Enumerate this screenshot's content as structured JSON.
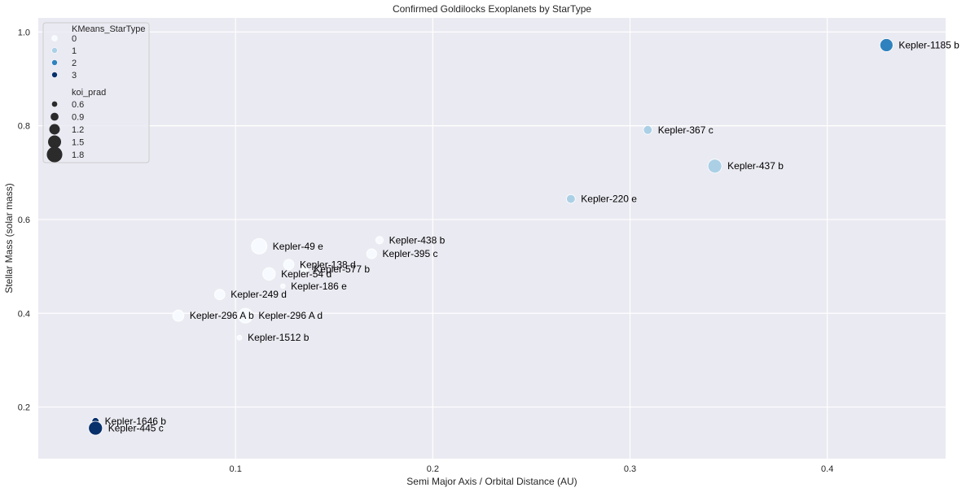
{
  "chart_data": {
    "type": "scatter",
    "title": "Confirmed Goldilocks Exoplanets by StarType",
    "xlabel": "Semi Major Axis / Orbital Distance (AU)",
    "ylabel": "Stellar Mass (solar mass)",
    "xlim": [
      0.0,
      0.46
    ],
    "ylim": [
      0.09,
      1.03
    ],
    "xticks": [
      0.1,
      0.2,
      0.3,
      0.4
    ],
    "xtick_labels": [
      "0.1",
      "0.2",
      "0.3",
      "0.4"
    ],
    "yticks": [
      0.2,
      0.4,
      0.6,
      0.8,
      1.0
    ],
    "ytick_labels": [
      "0.2",
      "0.4",
      "0.6",
      "0.8",
      "1.0"
    ],
    "grid": true,
    "legend_position": "top-left",
    "hue": {
      "title": "KMeans_StarType",
      "levels": [
        "0",
        "1",
        "2",
        "3"
      ],
      "colors": [
        "#f7fbff",
        "#abd0e6",
        "#3082be",
        "#08306b"
      ]
    },
    "size": {
      "title": "koi_prad",
      "levels": [
        "0.6",
        "0.9",
        "1.2",
        "1.5",
        "1.8"
      ],
      "values": [
        0.6,
        0.9,
        1.2,
        1.5,
        1.8
      ],
      "legend_color": "#2b2b2b"
    },
    "points": [
      {
        "label": "Kepler-1185 b",
        "x": 0.43,
        "y": 0.972,
        "star_type": 2,
        "koi_prad": 1.5
      },
      {
        "label": "Kepler-367 c",
        "x": 0.309,
        "y": 0.791,
        "star_type": 1,
        "koi_prad": 1.0
      },
      {
        "label": "Kepler-437 b",
        "x": 0.343,
        "y": 0.714,
        "star_type": 1,
        "koi_prad": 1.6
      },
      {
        "label": "Kepler-220 e",
        "x": 0.27,
        "y": 0.644,
        "star_type": 1,
        "koi_prad": 1.0
      },
      {
        "label": "Kepler-438 b",
        "x": 0.173,
        "y": 0.556,
        "star_type": 0,
        "koi_prad": 0.85
      },
      {
        "label": "Kepler-395 c",
        "x": 0.169,
        "y": 0.527,
        "star_type": 0,
        "koi_prad": 1.15
      },
      {
        "label": "Kepler-49 e",
        "x": 0.112,
        "y": 0.543,
        "star_type": 0,
        "koi_prad": 1.8
      },
      {
        "label": "Kepler-138 d",
        "x": 0.127,
        "y": 0.504,
        "star_type": 0,
        "koi_prad": 1.2
      },
      {
        "label": "Kepler-577 b",
        "x": 0.135,
        "y": 0.494,
        "star_type": 0,
        "koi_prad": 0.8
      },
      {
        "label": "Kepler-54 d",
        "x": 0.117,
        "y": 0.484,
        "star_type": 0,
        "koi_prad": 1.45
      },
      {
        "label": "Kepler-186 e",
        "x": 0.124,
        "y": 0.458,
        "star_type": 0,
        "koi_prad": 0.5
      },
      {
        "label": "Kepler-249 d",
        "x": 0.092,
        "y": 0.44,
        "star_type": 0,
        "koi_prad": 1.2
      },
      {
        "label": "Kepler-296 A b",
        "x": 0.071,
        "y": 0.395,
        "star_type": 0,
        "koi_prad": 1.3
      },
      {
        "label": "Kepler-296 A d",
        "x": 0.105,
        "y": 0.395,
        "star_type": 0,
        "koi_prad": 1.7
      },
      {
        "label": "Kepler-1512 b",
        "x": 0.102,
        "y": 0.348,
        "star_type": 0,
        "koi_prad": 0.55
      },
      {
        "label": "Kepler-1646 b",
        "x": 0.029,
        "y": 0.17,
        "star_type": 3,
        "koi_prad": 0.8
      },
      {
        "label": "Kepler-445 c",
        "x": 0.029,
        "y": 0.155,
        "star_type": 3,
        "koi_prad": 1.6
      }
    ]
  }
}
